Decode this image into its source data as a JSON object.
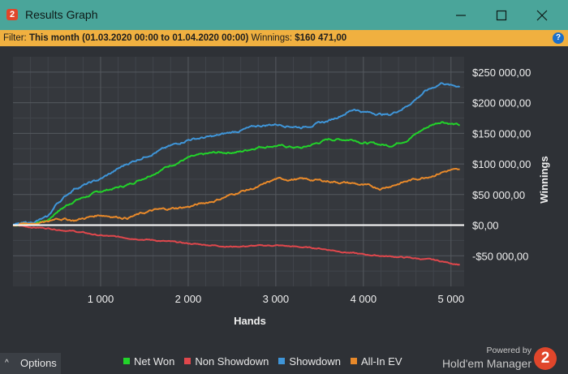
{
  "window": {
    "title": "Results Graph",
    "icon": "2",
    "buttons": [
      "minimize-icon",
      "maximize-icon",
      "close-icon"
    ]
  },
  "filter": {
    "label": "Filter:",
    "value": "This month (01.03.2020 00:00 to 01.04.2020 00:00)",
    "winnings_label": "Winnings:",
    "winnings_value": "$160 471,00",
    "help": "?"
  },
  "colors": {
    "titlebar": "#4aa59a",
    "filterbar": "#f0b040",
    "plot_bg": "#35383d",
    "net_won": "#22d32a",
    "non_showdown": "#e0474c",
    "showdown": "#3f95d8",
    "all_in_ev": "#e8892a",
    "zero_line": "#ffffff"
  },
  "chart_data": {
    "type": "line",
    "xlabel": "Hands",
    "ylabel": "Winnings",
    "xlim": [
      0,
      5150
    ],
    "ylim": [
      -100000,
      275000
    ],
    "x_ticks": [
      1000,
      2000,
      3000,
      4000,
      5000
    ],
    "x_tick_labels": [
      "1 000",
      "2 000",
      "3 000",
      "4 000",
      "5 000"
    ],
    "y_ticks": [
      250000,
      200000,
      150000,
      100000,
      50000,
      0,
      -50000
    ],
    "y_tick_labels": [
      "$250 000,00",
      "$200 000,00",
      "$150 000,00",
      "$100 000,00",
      "$50 000,00",
      "$0,00",
      "-$50 000,00"
    ],
    "grid": true,
    "legend_position": "bottom",
    "series": [
      {
        "name": "Net Won",
        "color": "#22d32a",
        "x": [
          0,
          200,
          400,
          500,
          700,
          1000,
          1300,
          1500,
          1800,
          2000,
          2300,
          2600,
          2800,
          3000,
          3300,
          3600,
          3900,
          4000,
          4300,
          4500,
          4700,
          4800,
          4900,
          5000,
          5100
        ],
        "y": [
          0,
          2000,
          8000,
          22000,
          40000,
          55000,
          65000,
          78000,
          98000,
          110000,
          118000,
          120000,
          128000,
          130000,
          126000,
          140000,
          140000,
          135000,
          130000,
          140000,
          158000,
          165000,
          170000,
          166000,
          163000
        ]
      },
      {
        "name": "Non Showdown",
        "color": "#e0474c",
        "x": [
          0,
          200,
          400,
          700,
          1000,
          1500,
          2000,
          2500,
          3000,
          3500,
          4000,
          4500,
          4800,
          5000,
          5100
        ],
        "y": [
          0,
          -3000,
          -5000,
          -10000,
          -17000,
          -23000,
          -30000,
          -35000,
          -33000,
          -38000,
          -48000,
          -53000,
          -57000,
          -62000,
          -64000
        ]
      },
      {
        "name": "Showdown",
        "color": "#3f95d8",
        "x": [
          0,
          200,
          400,
          500,
          700,
          1000,
          1300,
          1600,
          2000,
          2300,
          2600,
          2800,
          3000,
          3300,
          3600,
          3900,
          4000,
          4300,
          4500,
          4700,
          4800,
          4900,
          5000,
          5100
        ],
        "y": [
          0,
          4000,
          13000,
          35000,
          60000,
          75000,
          100000,
          118000,
          140000,
          145000,
          155000,
          162000,
          165000,
          160000,
          170000,
          190000,
          185000,
          180000,
          195000,
          218000,
          225000,
          233000,
          228000,
          227000
        ]
      },
      {
        "name": "All-In EV",
        "color": "#e8892a",
        "x": [
          0,
          200,
          400,
          500,
          700,
          1000,
          1300,
          1600,
          2000,
          2300,
          2600,
          2800,
          3000,
          3300,
          3600,
          3900,
          4000,
          4200,
          4500,
          4800,
          4900,
          5000,
          5100
        ],
        "y": [
          0,
          3000,
          5000,
          12000,
          8000,
          17000,
          12000,
          24000,
          30000,
          40000,
          55000,
          62000,
          75000,
          75000,
          72000,
          68000,
          65000,
          60000,
          72000,
          82000,
          87000,
          90000,
          89000
        ]
      }
    ]
  },
  "options": {
    "caret": "^",
    "label": "Options"
  },
  "branding": {
    "powered_by": "Powered by",
    "name": "Hold'em Manager",
    "logo": "2"
  }
}
